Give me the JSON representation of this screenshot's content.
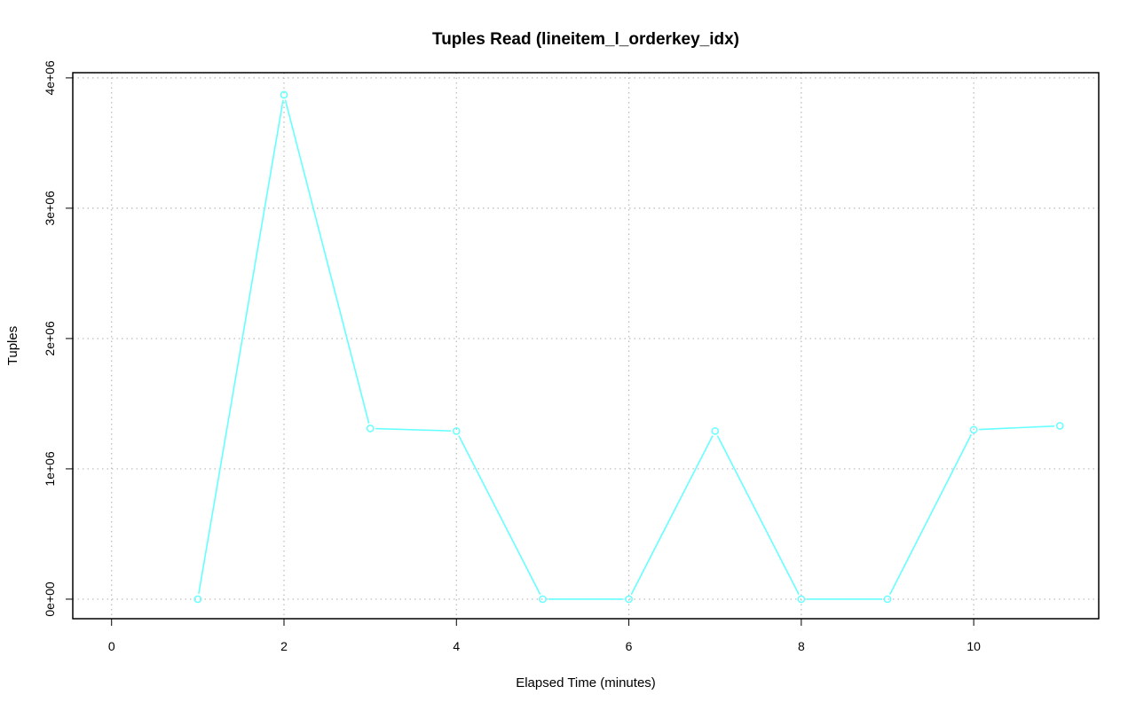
{
  "chart_data": {
    "type": "line",
    "title": "Tuples Read (lineitem_l_orderkey_idx)",
    "xlabel": "Elapsed Time (minutes)",
    "ylabel": "Tuples",
    "xlim": [
      -0.45,
      11.45
    ],
    "ylim": [
      -150000,
      4040000
    ],
    "x_ticks": [
      0,
      2,
      4,
      6,
      8,
      10
    ],
    "x_tick_labels": [
      "0",
      "2",
      "4",
      "6",
      "8",
      "10"
    ],
    "y_ticks": [
      0,
      1000000,
      2000000,
      3000000,
      4000000
    ],
    "y_tick_labels": [
      "0e+00",
      "1e+06",
      "2e+06",
      "3e+06",
      "4e+06"
    ],
    "grid": true,
    "series": [
      {
        "color": "#66ffff",
        "marker": "open-circle",
        "x": [
          1,
          2,
          3,
          4,
          5,
          6,
          7,
          8,
          9,
          10,
          11
        ],
        "y": [
          0,
          3870000,
          1310000,
          1290000,
          0,
          0,
          1290000,
          0,
          0,
          1300000,
          1330000
        ]
      }
    ]
  }
}
